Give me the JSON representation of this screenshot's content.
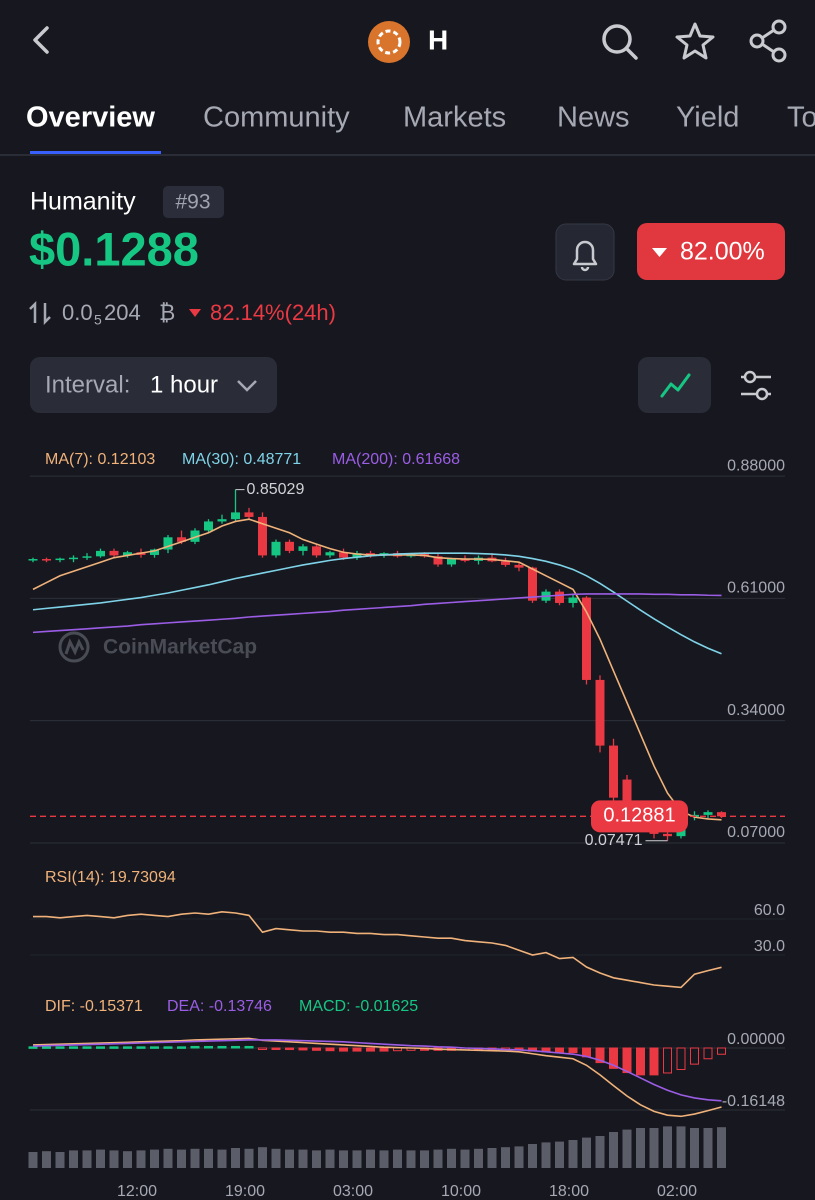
{
  "header": {
    "title": "H"
  },
  "tabs": [
    "Overview",
    "Community",
    "Markets",
    "News",
    "Yield",
    "To"
  ],
  "coin": {
    "name": "Humanity",
    "rank": "#93",
    "price": "$0.1288",
    "change_badge": "82.00%",
    "btc_price_lead": "0.0",
    "btc_price_zeros": "5",
    "btc_price_digits": "204",
    "btc_symbol": "₿",
    "change_24h": "82.14%(24h)"
  },
  "interval": {
    "label": "Interval:",
    "value": "1 hour"
  },
  "watermark": "CoinMarketCap",
  "chart_data": {
    "type": "candlestick",
    "categories": [
      null,
      null,
      null,
      null,
      null,
      null,
      null,
      null,
      "12:00",
      null,
      null,
      null,
      null,
      null,
      null,
      null,
      "19:00",
      null,
      null,
      null,
      null,
      null,
      null,
      null,
      "03:00",
      null,
      null,
      null,
      null,
      null,
      null,
      null,
      "10:00",
      null,
      null,
      null,
      null,
      null,
      null,
      null,
      "18:00",
      null,
      null,
      null,
      null,
      null,
      null,
      null,
      "02:00",
      null,
      null,
      null
    ],
    "candles": [
      [
        0.695,
        0.7,
        0.69,
        0.697
      ],
      [
        0.697,
        0.7,
        0.69,
        0.695
      ],
      [
        0.695,
        0.7,
        0.69,
        0.698
      ],
      [
        0.698,
        0.705,
        0.69,
        0.7
      ],
      [
        0.7,
        0.71,
        0.695,
        0.703
      ],
      [
        0.703,
        0.72,
        0.7,
        0.715
      ],
      [
        0.715,
        0.72,
        0.7,
        0.705
      ],
      [
        0.705,
        0.715,
        0.7,
        0.712
      ],
      [
        0.712,
        0.72,
        0.7,
        0.706
      ],
      [
        0.706,
        0.72,
        0.7,
        0.718
      ],
      [
        0.718,
        0.75,
        0.71,
        0.745
      ],
      [
        0.745,
        0.76,
        0.73,
        0.735
      ],
      [
        0.735,
        0.765,
        0.73,
        0.76
      ],
      [
        0.76,
        0.785,
        0.755,
        0.78
      ],
      [
        0.78,
        0.795,
        0.775,
        0.785
      ],
      [
        0.785,
        0.85029,
        0.78,
        0.8
      ],
      [
        0.8,
        0.81,
        0.785,
        0.79
      ],
      [
        0.79,
        0.8,
        0.7,
        0.705
      ],
      [
        0.705,
        0.74,
        0.7,
        0.735
      ],
      [
        0.735,
        0.74,
        0.71,
        0.715
      ],
      [
        0.715,
        0.73,
        0.705,
        0.725
      ],
      [
        0.725,
        0.73,
        0.7,
        0.705
      ],
      [
        0.705,
        0.715,
        0.7,
        0.712
      ],
      [
        0.712,
        0.72,
        0.695,
        0.7
      ],
      [
        0.7,
        0.715,
        0.695,
        0.71
      ],
      [
        0.71,
        0.715,
        0.7,
        0.705
      ],
      [
        0.705,
        0.712,
        0.7,
        0.71
      ],
      [
        0.71,
        0.715,
        0.7,
        0.703
      ],
      [
        0.703,
        0.71,
        0.7,
        0.708
      ],
      [
        0.708,
        0.712,
        0.7,
        0.703
      ],
      [
        0.703,
        0.71,
        0.68,
        0.685
      ],
      [
        0.685,
        0.7,
        0.68,
        0.698
      ],
      [
        0.698,
        0.705,
        0.69,
        0.693
      ],
      [
        0.693,
        0.705,
        0.685,
        0.7
      ],
      [
        0.7,
        0.71,
        0.69,
        0.692
      ],
      [
        0.692,
        0.7,
        0.68,
        0.684
      ],
      [
        0.684,
        0.69,
        0.67,
        0.678
      ],
      [
        0.678,
        0.68,
        0.6,
        0.605
      ],
      [
        0.605,
        0.63,
        0.6,
        0.625
      ],
      [
        0.625,
        0.63,
        0.595,
        0.6
      ],
      [
        0.6,
        0.62,
        0.59,
        0.612
      ],
      [
        0.612,
        0.615,
        0.42,
        0.43
      ],
      [
        0.43,
        0.44,
        0.27,
        0.285
      ],
      [
        0.285,
        0.3,
        0.16,
        0.17
      ],
      [
        0.21,
        0.22,
        0.12,
        0.125
      ],
      [
        0.125,
        0.14,
        0.1,
        0.11
      ],
      [
        0.11,
        0.12,
        0.08,
        0.09
      ],
      [
        0.09,
        0.1,
        0.07471,
        0.085
      ],
      [
        0.085,
        0.135,
        0.08,
        0.128
      ],
      [
        0.128,
        0.14,
        0.12,
        0.132
      ],
      [
        0.132,
        0.142,
        0.125,
        0.138
      ],
      [
        0.138,
        0.14,
        0.125,
        0.1288
      ]
    ],
    "up_color": "#16c784",
    "down_color": "#ea3943",
    "ylim": [
      0.05,
      0.94
    ],
    "yticks": [
      {
        "value": 0.88,
        "label": "0.88000"
      },
      {
        "value": 0.61,
        "label": "0.61000"
      },
      {
        "value": 0.34,
        "label": "0.34000"
      },
      {
        "value": 0.07,
        "label": "0.07000"
      }
    ],
    "series": [
      {
        "name": "MA(7): 0.12103",
        "color": "#f0b27a",
        "values": [
          0.63,
          0.645,
          0.66,
          0.67,
          0.68,
          0.69,
          0.7,
          0.705,
          0.71,
          0.715,
          0.725,
          0.735,
          0.745,
          0.755,
          0.77,
          0.78,
          0.785,
          0.775,
          0.765,
          0.755,
          0.74,
          0.73,
          0.72,
          0.712,
          0.708,
          0.706,
          0.706,
          0.706,
          0.706,
          0.705,
          0.7,
          0.698,
          0.697,
          0.697,
          0.696,
          0.693,
          0.69,
          0.675,
          0.66,
          0.645,
          0.63,
          0.58,
          0.52,
          0.45,
          0.38,
          0.31,
          0.24,
          0.18,
          0.14,
          0.127,
          0.123,
          0.12103
        ]
      },
      {
        "name": "MA(30): 0.48771",
        "color": "#7fd3e8",
        "values": [
          0.585,
          0.588,
          0.591,
          0.594,
          0.597,
          0.6,
          0.604,
          0.608,
          0.612,
          0.617,
          0.622,
          0.628,
          0.634,
          0.64,
          0.647,
          0.654,
          0.66,
          0.666,
          0.672,
          0.678,
          0.684,
          0.689,
          0.694,
          0.698,
          0.701,
          0.704,
          0.706,
          0.708,
          0.709,
          0.71,
          0.71,
          0.71,
          0.71,
          0.709,
          0.708,
          0.706,
          0.703,
          0.698,
          0.692,
          0.684,
          0.674,
          0.66,
          0.643,
          0.624,
          0.604,
          0.584,
          0.565,
          0.547,
          0.53,
          0.514,
          0.5,
          0.48771
        ]
      },
      {
        "name": "MA(200): 0.61668",
        "color": "#9b5de5",
        "values": [
          0.535,
          0.537,
          0.539,
          0.541,
          0.543,
          0.545,
          0.547,
          0.549,
          0.552,
          0.554,
          0.556,
          0.558,
          0.56,
          0.562,
          0.564,
          0.566,
          0.569,
          0.571,
          0.573,
          0.575,
          0.577,
          0.579,
          0.581,
          0.584,
          0.586,
          0.588,
          0.59,
          0.592,
          0.594,
          0.597,
          0.599,
          0.601,
          0.603,
          0.605,
          0.607,
          0.609,
          0.611,
          0.613,
          0.615,
          0.617,
          0.619,
          0.62,
          0.62,
          0.62,
          0.62,
          0.62,
          0.619,
          0.619,
          0.618,
          0.618,
          0.617,
          0.61668
        ]
      }
    ],
    "last_price": 0.12881,
    "rsi": {
      "legend": "RSI(14): 19.73094",
      "color": "#f0b27a",
      "ylim": [
        0,
        100
      ],
      "yticks": [
        {
          "value": 60,
          "label": "60.0"
        },
        {
          "value": 30,
          "label": "30.0"
        }
      ],
      "values": [
        62,
        62,
        61,
        62,
        63,
        62,
        61,
        63,
        64,
        63,
        62,
        64,
        65,
        64,
        66,
        65,
        63,
        49,
        52,
        51,
        50,
        50,
        49,
        49,
        48,
        48,
        47,
        47,
        46,
        45,
        44,
        44,
        42,
        41,
        40,
        38,
        34,
        30,
        32,
        27,
        28,
        20,
        15,
        11,
        9,
        7,
        5,
        4,
        3,
        14,
        17,
        19.73094
      ]
    },
    "macd": {
      "ylim": [
        -0.19,
        0.05
      ],
      "yticks": [
        {
          "value": 0,
          "label": "0.00000"
        },
        {
          "value": -0.16148,
          "label": "-0.16148"
        }
      ],
      "series": [
        {
          "name": "DIF: -0.15371",
          "color": "#f0b27a",
          "values": [
            0.008,
            0.009,
            0.01,
            0.011,
            0.012,
            0.013,
            0.014,
            0.015,
            0.016,
            0.017,
            0.018,
            0.019,
            0.021,
            0.022,
            0.023,
            0.024,
            0.025,
            0.02,
            0.018,
            0.016,
            0.014,
            0.012,
            0.01,
            0.008,
            0.006,
            0.004,
            0.002,
            0.001,
            0.0,
            -0.001,
            -0.003,
            -0.004,
            -0.005,
            -0.006,
            -0.007,
            -0.008,
            -0.01,
            -0.015,
            -0.02,
            -0.024,
            -0.028,
            -0.045,
            -0.07,
            -0.098,
            -0.125,
            -0.148,
            -0.165,
            -0.175,
            -0.178,
            -0.172,
            -0.163,
            -0.15371
          ]
        },
        {
          "name": "DEA: -0.13746",
          "color": "#9b5de5",
          "values": [
            0.005,
            0.006,
            0.007,
            0.008,
            0.009,
            0.01,
            0.011,
            0.012,
            0.013,
            0.014,
            0.015,
            0.016,
            0.017,
            0.018,
            0.019,
            0.02,
            0.021,
            0.021,
            0.021,
            0.02,
            0.019,
            0.018,
            0.017,
            0.016,
            0.014,
            0.012,
            0.01,
            0.008,
            0.006,
            0.005,
            0.003,
            0.002,
            0.0,
            -0.001,
            -0.002,
            -0.004,
            -0.005,
            -0.007,
            -0.01,
            -0.013,
            -0.016,
            -0.022,
            -0.032,
            -0.045,
            -0.061,
            -0.078,
            -0.095,
            -0.11,
            -0.122,
            -0.13,
            -0.135,
            -0.13746
          ]
        }
      ],
      "histogram": {
        "name": "MACD: -0.01625",
        "color": "#16c784",
        "values": [
          0.003,
          0.003,
          0.003,
          0.003,
          0.003,
          0.003,
          0.003,
          0.003,
          0.003,
          0.003,
          0.003,
          0.003,
          0.004,
          0.004,
          0.004,
          0.004,
          0.004,
          -0.001,
          -0.003,
          -0.004,
          -0.005,
          -0.006,
          -0.007,
          -0.008,
          -0.008,
          -0.008,
          -0.008,
          -0.007,
          -0.006,
          -0.006,
          -0.006,
          -0.006,
          -0.005,
          -0.005,
          -0.005,
          -0.004,
          -0.005,
          -0.008,
          -0.01,
          -0.011,
          -0.012,
          -0.023,
          -0.038,
          -0.053,
          -0.064,
          -0.07,
          -0.07,
          -0.065,
          -0.056,
          -0.042,
          -0.028,
          -0.01625
        ]
      }
    },
    "volume": {
      "ylim": [
        0,
        60
      ],
      "color": "#5b5d68",
      "values": [
        20,
        21,
        20,
        22,
        22,
        23,
        22,
        21,
        22,
        23,
        24,
        23,
        24,
        24,
        23,
        25,
        24,
        26,
        24,
        23,
        23,
        22,
        23,
        22,
        22,
        23,
        22,
        23,
        22,
        22,
        23,
        24,
        23,
        24,
        25,
        26,
        27,
        30,
        32,
        33,
        35,
        38,
        40,
        45,
        48,
        50,
        50,
        52,
        52,
        50,
        50,
        51
      ]
    }
  }
}
